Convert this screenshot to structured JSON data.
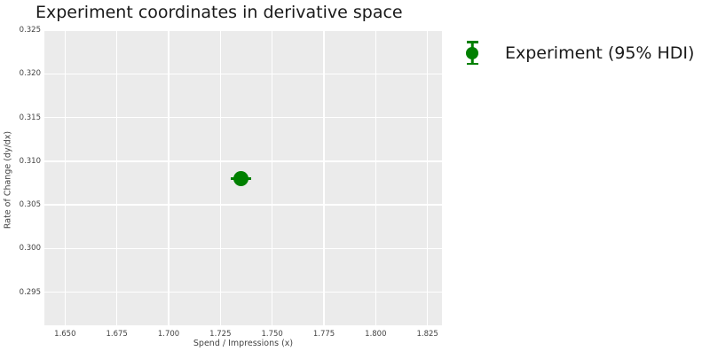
{
  "chart_data": {
    "type": "scatter",
    "title": "Experiment coordinates in derivative space",
    "xlabel": "Spend / Impressions (x)",
    "ylabel": "Rate of Change (dy/dx)",
    "grid": true,
    "plot_bg": "#ebebeb",
    "grid_color": "#ffffff",
    "tick_color": "#444444",
    "text_color": "#1a1a1a",
    "xlim": [
      1.64,
      1.832
    ],
    "ylim": [
      0.2912,
      0.325
    ],
    "xticks": [
      {
        "value": 1.65,
        "label": "1.650"
      },
      {
        "value": 1.675,
        "label": "1.675"
      },
      {
        "value": 1.7,
        "label": "1.700"
      },
      {
        "value": 1.725,
        "label": "1.725"
      },
      {
        "value": 1.75,
        "label": "1.750"
      },
      {
        "value": 1.775,
        "label": "1.775"
      },
      {
        "value": 1.8,
        "label": "1.800"
      },
      {
        "value": 1.825,
        "label": "1.825"
      }
    ],
    "yticks": [
      {
        "value": 0.295,
        "label": "0.295"
      },
      {
        "value": 0.3,
        "label": "0.300"
      },
      {
        "value": 0.305,
        "label": "0.305"
      },
      {
        "value": 0.31,
        "label": "0.310"
      },
      {
        "value": 0.315,
        "label": "0.315"
      },
      {
        "value": 0.32,
        "label": "0.320"
      },
      {
        "value": 0.325,
        "label": "0.325"
      }
    ],
    "series": [
      {
        "name": "Experiment (95% HDI)",
        "color": "#008000",
        "marker": "circle",
        "points": [
          {
            "x": 1.735,
            "y": 0.308,
            "x_err": 0.005,
            "y_err": 0.0008
          }
        ]
      }
    ],
    "legend": {
      "position": "outside-upper-right",
      "entries": [
        {
          "label": "Experiment (95% HDI)",
          "marker": "errorbar-circle",
          "color": "#008000"
        }
      ]
    }
  }
}
